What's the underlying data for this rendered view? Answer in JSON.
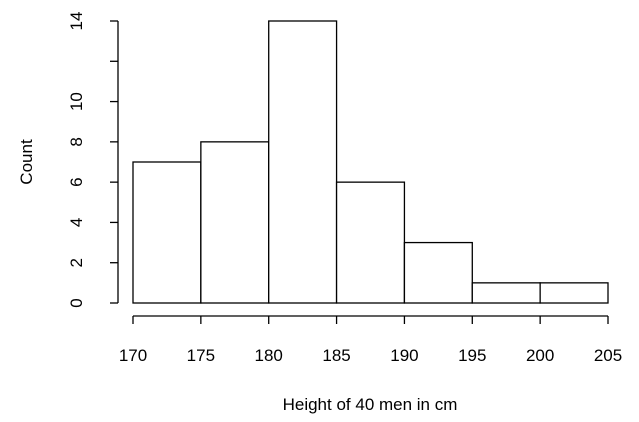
{
  "chart_data": {
    "type": "bar",
    "variant": "histogram",
    "bins": [
      {
        "start": 170,
        "end": 175,
        "count": 7
      },
      {
        "start": 175,
        "end": 180,
        "count": 8
      },
      {
        "start": 180,
        "end": 185,
        "count": 14
      },
      {
        "start": 185,
        "end": 190,
        "count": 6
      },
      {
        "start": 190,
        "end": 195,
        "count": 3
      },
      {
        "start": 195,
        "end": 200,
        "count": 1
      },
      {
        "start": 200,
        "end": 205,
        "count": 1
      }
    ],
    "title": "",
    "xlabel": "Height of 40 men in cm",
    "ylabel": "Count",
    "xlim": [
      170,
      205
    ],
    "ylim": [
      0,
      14
    ],
    "x_ticks": [
      "170",
      "175",
      "180",
      "185",
      "190",
      "195",
      "200",
      "205"
    ],
    "y_ticks": [
      "0",
      "2",
      "4",
      "6",
      "8",
      "10",
      "14"
    ],
    "grid": false,
    "legend": "none",
    "colors": {
      "bar_fill": "#ffffff",
      "bar_stroke": "#000000",
      "axis": "#000000"
    }
  }
}
